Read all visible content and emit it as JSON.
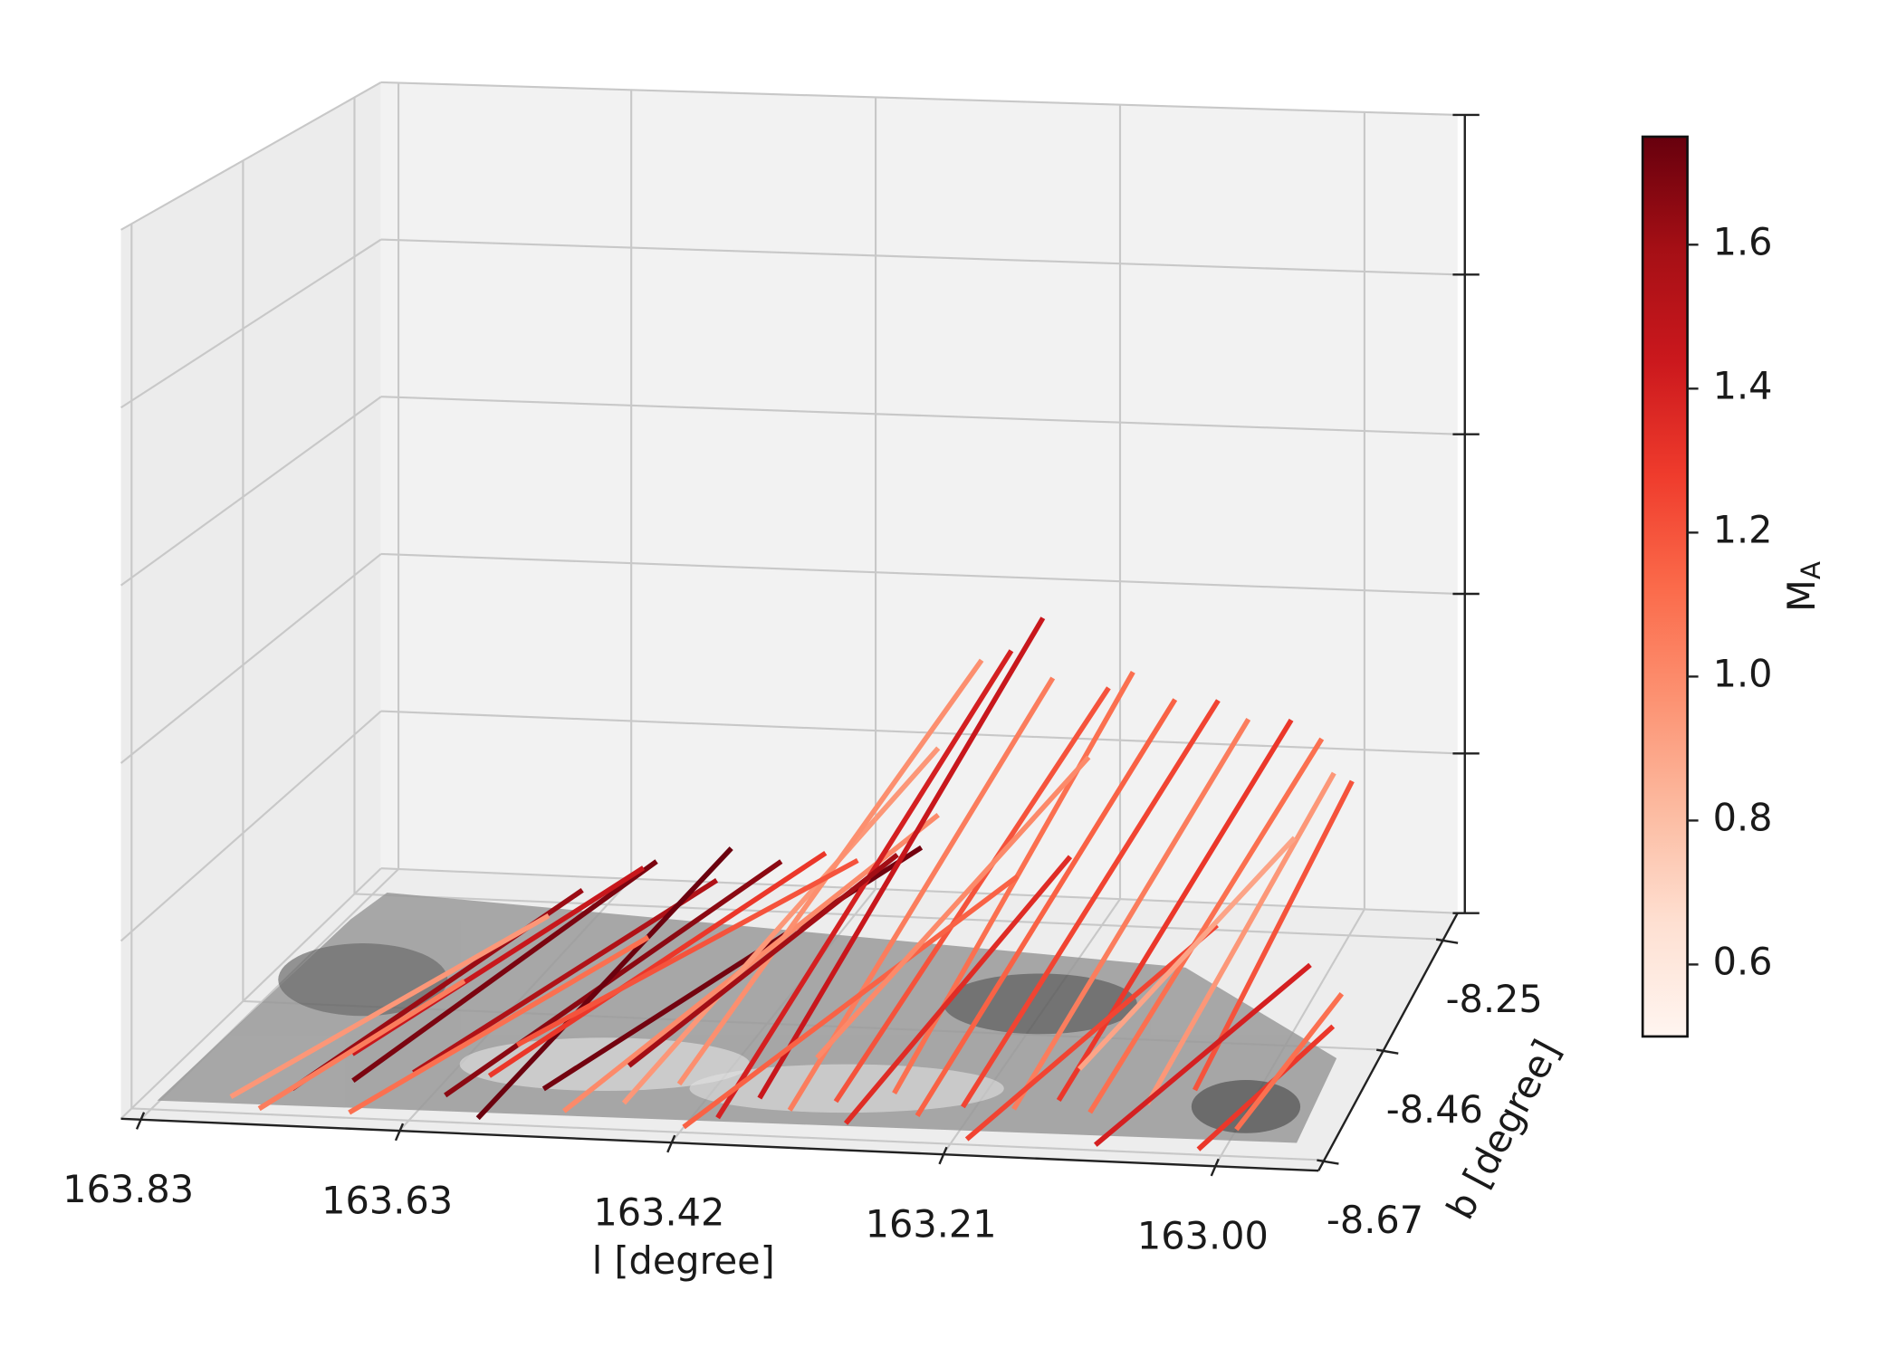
{
  "chart_data": {
    "type": "segments3d",
    "xlabel": "l [degree]",
    "ylabel": "b [degree]",
    "colorbar_label": {
      "text": "M",
      "subscript": "A"
    },
    "colormap": "Reds",
    "xlim": [
      163.845,
      162.92
    ],
    "xticks": [
      163.83,
      163.63,
      163.42,
      163.21,
      {
        "value": 163,
        "label": "163.00"
      }
    ],
    "ylim": [
      -8.69,
      -8.2
    ],
    "yticks": [
      -8.25,
      -8.46,
      -8.67
    ],
    "zlim": [
      0,
      1
    ],
    "zticks": [
      0,
      0.2,
      0.4,
      0.6,
      0.8,
      1
    ],
    "clim": [
      0.5,
      1.75
    ],
    "cticks": [
      0.6,
      0.8,
      {
        "value": 1,
        "label": "1.0"
      },
      1.2,
      1.4,
      1.6
    ],
    "grid": true,
    "segments": [
      {
        "l": [
          163.74,
          163.6
        ],
        "b": [
          -8.62,
          -8.38
        ],
        "z": [
          0,
          0.1
        ],
        "ma": 1.62
      },
      {
        "l": [
          163.7,
          163.55
        ],
        "b": [
          -8.6,
          -8.35
        ],
        "z": [
          0,
          0.12
        ],
        "ma": 1.7
      },
      {
        "l": [
          163.66,
          163.5
        ],
        "b": [
          -8.58,
          -8.35
        ],
        "z": [
          0,
          0.1
        ],
        "ma": 1.55
      },
      {
        "l": [
          163.72,
          163.58
        ],
        "b": [
          -8.55,
          -8.3
        ],
        "z": [
          0,
          0.08
        ],
        "ma": 1.45
      },
      {
        "l": [
          163.62,
          163.45
        ],
        "b": [
          -8.62,
          -8.34
        ],
        "z": [
          0,
          0.12
        ],
        "ma": 1.66
      },
      {
        "l": [
          163.58,
          163.47
        ],
        "b": [
          -8.66,
          -8.4
        ],
        "z": [
          0,
          0.17
        ],
        "ma": 1.74
      },
      {
        "l": [
          163.55,
          163.33
        ],
        "b": [
          -8.6,
          -8.35
        ],
        "z": [
          0,
          0.15
        ],
        "ma": 1.72
      },
      {
        "l": [
          163.78,
          163.62
        ],
        "b": [
          -8.64,
          -8.4
        ],
        "z": [
          0,
          0.08
        ],
        "ma": 0.95
      },
      {
        "l": [
          163.68,
          163.52
        ],
        "b": [
          -8.66,
          -8.45
        ],
        "z": [
          0,
          0.09
        ],
        "ma": 1.1
      },
      {
        "l": [
          163.6,
          163.42
        ],
        "b": [
          -8.58,
          -8.32
        ],
        "z": [
          0,
          0.12
        ],
        "ma": 1.3
      },
      {
        "l": [
          163.52,
          163.3
        ],
        "b": [
          -8.64,
          -8.4
        ],
        "z": [
          0,
          0.22
        ],
        "ma": 1.0
      },
      {
        "l": [
          163.48,
          163.3
        ],
        "b": [
          -8.62,
          -8.4
        ],
        "z": [
          0,
          0.3
        ],
        "ma": 0.95
      },
      {
        "l": [
          163.45,
          163.28
        ],
        "b": [
          -8.58,
          -8.35
        ],
        "z": [
          0,
          0.38
        ],
        "ma": 0.98
      },
      {
        "l": [
          163.4,
          163.24
        ],
        "b": [
          -8.64,
          -8.4
        ],
        "z": [
          0,
          0.42
        ],
        "ma": 1.4
      },
      {
        "l": [
          163.38,
          163.22
        ],
        "b": [
          -8.6,
          -8.38
        ],
        "z": [
          0,
          0.45
        ],
        "ma": 1.45
      },
      {
        "l": [
          163.35,
          163.2
        ],
        "b": [
          -8.62,
          -8.42
        ],
        "z": [
          0,
          0.4
        ],
        "ma": 1.05
      },
      {
        "l": [
          163.32,
          163.16
        ],
        "b": [
          -8.6,
          -8.4
        ],
        "z": [
          0,
          0.38
        ],
        "ma": 1.2
      },
      {
        "l": [
          163.28,
          163.14
        ],
        "b": [
          -8.58,
          -8.4
        ],
        "z": [
          0,
          0.4
        ],
        "ma": 1.1
      },
      {
        "l": [
          163.25,
          163.1
        ],
        "b": [
          -8.62,
          -8.42
        ],
        "z": [
          0,
          0.38
        ],
        "ma": 1.15
      },
      {
        "l": [
          163.22,
          163.07
        ],
        "b": [
          -8.6,
          -8.4
        ],
        "z": [
          0,
          0.37
        ],
        "ma": 1.25
      },
      {
        "l": [
          163.18,
          163.04
        ],
        "b": [
          -8.6,
          -8.42
        ],
        "z": [
          0,
          0.36
        ],
        "ma": 1.05
      },
      {
        "l": [
          163.15,
          163.01
        ],
        "b": [
          -8.58,
          -8.4
        ],
        "z": [
          0,
          0.35
        ],
        "ma": 1.3
      },
      {
        "l": [
          163.12,
          162.98
        ],
        "b": [
          -8.6,
          -8.42
        ],
        "z": [
          0,
          0.34
        ],
        "ma": 1.1
      },
      {
        "l": [
          163.08,
          162.97
        ],
        "b": [
          -8.58,
          -8.42
        ],
        "z": [
          0,
          0.3
        ],
        "ma": 0.95
      },
      {
        "l": [
          163.05,
          162.96
        ],
        "b": [
          -8.55,
          -8.4
        ],
        "z": [
          0,
          0.28
        ],
        "ma": 1.2
      },
      {
        "l": [
          163.3,
          163.18
        ],
        "b": [
          -8.64,
          -8.44
        ],
        "z": [
          0,
          0.2
        ],
        "ma": 1.35
      },
      {
        "l": [
          163.42,
          163.22
        ],
        "b": [
          -8.66,
          -8.45
        ],
        "z": [
          0,
          0.18
        ],
        "ma": 1.15
      },
      {
        "l": [
          163.2,
          163.05
        ],
        "b": [
          -8.66,
          -8.48
        ],
        "z": [
          0,
          0.15
        ],
        "ma": 1.25
      },
      {
        "l": [
          163.1,
          162.97
        ],
        "b": [
          -8.66,
          -8.5
        ],
        "z": [
          0,
          0.12
        ],
        "ma": 1.4
      },
      {
        "l": [
          163.02,
          162.94
        ],
        "b": [
          -8.66,
          -8.55
        ],
        "z": [
          0,
          0.08
        ],
        "ma": 1.3
      },
      {
        "l": [
          163.0,
          162.94
        ],
        "b": [
          -8.62,
          -8.52
        ],
        "z": [
          0,
          0.1
        ],
        "ma": 1.1
      },
      {
        "l": [
          163.15,
          163.02
        ],
        "b": [
          -8.52,
          -8.35
        ],
        "z": [
          0,
          0.18
        ],
        "ma": 0.9
      },
      {
        "l": [
          163.6,
          163.4
        ],
        "b": [
          -8.52,
          -8.3
        ],
        "z": [
          0,
          0.1
        ],
        "ma": 1.2
      },
      {
        "l": [
          163.75,
          163.65
        ],
        "b": [
          -8.66,
          -8.5
        ],
        "z": [
          0,
          0.06
        ],
        "ma": 1.05
      },
      {
        "l": [
          163.5,
          163.35
        ],
        "b": [
          -8.55,
          -8.35
        ],
        "z": [
          0,
          0.14
        ],
        "ma": 1.6
      },
      {
        "l": [
          163.36,
          163.2
        ],
        "b": [
          -8.52,
          -8.32
        ],
        "z": [
          0,
          0.25
        ],
        "ma": 1.0
      }
    ]
  }
}
